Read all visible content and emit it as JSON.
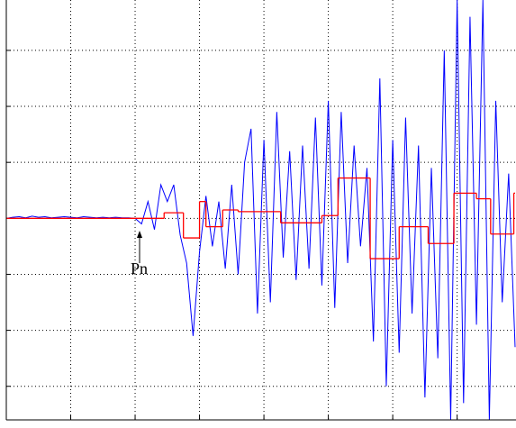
{
  "chart_data": {
    "type": "line",
    "annotation": "Pn",
    "x": [
      0,
      0.1,
      0.2,
      0.3,
      0.4,
      0.5,
      0.6,
      0.7,
      0.8,
      0.9,
      1.0,
      1.1,
      1.2,
      1.3,
      1.4,
      1.5,
      1.6,
      1.7,
      1.8,
      1.9,
      2.0,
      2.1,
      2.2,
      2.3,
      2.4,
      2.5,
      2.6,
      2.7,
      2.8,
      2.9,
      3.0,
      3.1,
      3.2,
      3.3,
      3.4,
      3.5,
      3.6,
      3.7,
      3.8,
      3.9,
      4.0,
      4.1,
      4.2,
      4.3,
      4.4,
      4.5,
      4.6,
      4.7,
      4.8,
      4.9,
      5.0,
      5.1,
      5.2,
      5.3,
      5.4,
      5.5,
      5.6,
      5.7,
      5.8,
      5.9,
      6.0,
      6.1,
      6.2,
      6.3,
      6.4,
      6.5,
      6.6,
      6.7,
      6.8,
      6.9,
      7.0,
      7.1,
      7.2,
      7.3,
      7.4,
      7.5,
      7.6,
      7.7,
      7.8,
      7.9
    ],
    "series": [
      {
        "color": "#0000ff",
        "values": [
          0,
          0.02,
          0.03,
          0.01,
          0.04,
          0.02,
          0.03,
          0.01,
          0.02,
          0.03,
          0.02,
          0.01,
          0.03,
          0.02,
          0.01,
          0.02,
          0.01,
          0.02,
          0.01,
          0.01,
          0,
          -0.1,
          0.3,
          -0.2,
          0.6,
          0.3,
          0.6,
          -0.3,
          -0.8,
          -2.1,
          -0.6,
          0.4,
          -0.5,
          0.3,
          -0.9,
          0.6,
          -1.0,
          1.0,
          1.6,
          -1.7,
          1.4,
          -1.5,
          1.9,
          -0.7,
          1.2,
          -1.1,
          1.3,
          -0.9,
          1.8,
          -1.2,
          2.1,
          -1.6,
          1.9,
          -0.8,
          1.3,
          -0.5,
          0.9,
          -2.2,
          2.5,
          -3.0,
          1.4,
          -2.4,
          1.8,
          -1.7,
          1.3,
          -3.2,
          0.9,
          -2.5,
          3.0,
          -3.6,
          3.9,
          -3.3,
          3.6,
          -1.9,
          3.9,
          -3.6,
          2.1,
          -1.5,
          0.8,
          -2.3
        ]
      },
      {
        "color": "#ff0000",
        "step": true,
        "x": [
          0,
          2.45,
          2.75,
          3.0,
          3.1,
          3.36,
          3.6,
          4.26,
          4.9,
          5.15,
          5.65,
          6.1,
          6.55,
          6.95,
          7.3,
          7.52,
          7.88
        ],
        "values": [
          0,
          0.1,
          -0.35,
          0.3,
          -0.15,
          0.15,
          0.12,
          -0.08,
          0.05,
          0.72,
          -0.72,
          -0.15,
          -0.45,
          0.45,
          0.35,
          -0.28,
          0.45
        ]
      }
    ],
    "xlim": [
      0,
      7.9
    ],
    "ylim": [
      -3.6,
      3.9
    ],
    "xticks": [
      1,
      2,
      3,
      4,
      5,
      6,
      7
    ],
    "yticks": [
      -3,
      -2,
      -1,
      0,
      1,
      2,
      3
    ],
    "grid": true
  }
}
